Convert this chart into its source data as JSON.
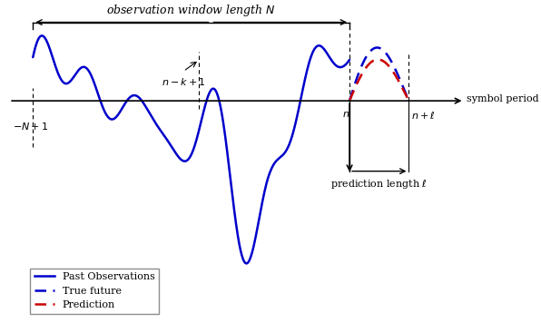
{
  "title": "",
  "obs_window_text": "observation window length $N$",
  "symbol_period_text": "symbol period",
  "prediction_length_text": "prediction length $\\ell$",
  "label_N1": "$-N+1$",
  "label_nk1": "$n-k+1$",
  "label_n": "$n$",
  "label_nl": "$n+\\ell$",
  "legend_past": "Past Observations",
  "legend_true": "True future",
  "legend_pred": "Prediction",
  "blue_color": "#0000cc",
  "red_color": "#cc0000",
  "line_width": 1.8,
  "figsize": [
    5.96,
    3.56
  ],
  "dpi": 100
}
